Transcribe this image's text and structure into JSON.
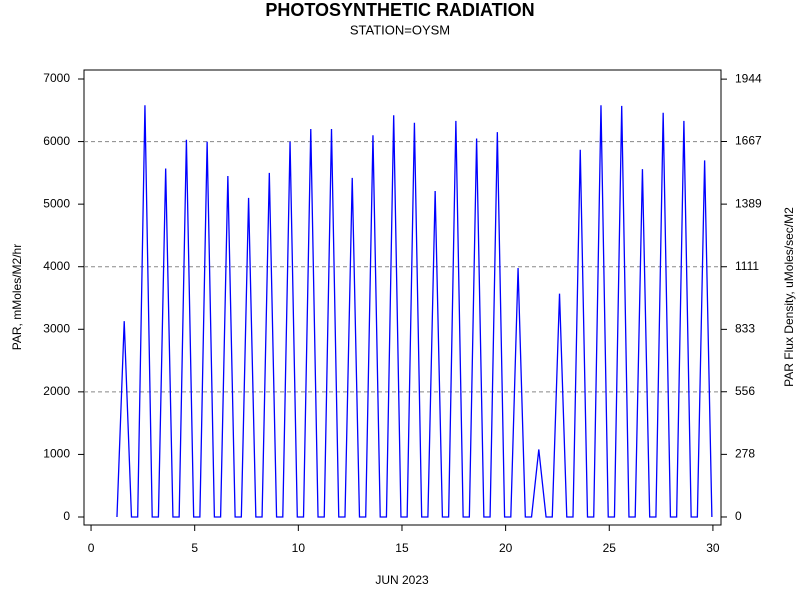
{
  "chart_data": {
    "type": "line",
    "title": "PHOTOSYNTHETIC RADIATION",
    "subtitle": "STATION=OYSM",
    "x_label": "JUN 2023",
    "y_label": "PAR, mMoles/M2/hr",
    "y2_label": "PAR Flux Density, uMoles/sec/M2",
    "x": [
      1.25,
      1.6,
      1.95,
      2.25,
      2.6,
      2.95,
      3.25,
      3.6,
      3.95,
      4.25,
      4.6,
      4.95,
      5.25,
      5.6,
      5.95,
      6.25,
      6.6,
      6.95,
      7.25,
      7.6,
      7.95,
      8.25,
      8.6,
      8.95,
      9.25,
      9.6,
      9.95,
      10.25,
      10.6,
      10.95,
      11.25,
      11.6,
      11.95,
      12.25,
      12.6,
      12.95,
      13.25,
      13.6,
      13.95,
      14.25,
      14.6,
      14.95,
      15.25,
      15.6,
      15.95,
      16.25,
      16.6,
      16.95,
      17.25,
      17.6,
      17.95,
      18.25,
      18.6,
      18.95,
      19.25,
      19.6,
      19.95,
      20.25,
      20.6,
      20.95,
      21.25,
      21.6,
      21.95,
      22.25,
      22.6,
      22.95,
      23.25,
      23.6,
      23.95,
      24.25,
      24.6,
      24.95,
      25.25,
      25.6,
      25.95,
      26.25,
      26.6,
      26.95,
      27.25,
      27.6,
      27.95,
      28.25,
      28.6,
      28.95,
      29.25,
      29.6,
      29.95
    ],
    "series": [
      {
        "color": "#0000ff",
        "values": [
          0,
          3130,
          0,
          0,
          6580,
          0,
          0,
          5570,
          0,
          0,
          6030,
          0,
          0,
          6000,
          0,
          0,
          5450,
          0,
          0,
          5100,
          0,
          0,
          5500,
          0,
          0,
          6000,
          0,
          0,
          6200,
          0,
          0,
          6200,
          0,
          0,
          5420,
          0,
          0,
          6100,
          0,
          0,
          6420,
          0,
          0,
          6300,
          0,
          0,
          5210,
          0,
          0,
          6330,
          0,
          0,
          6050,
          0,
          0,
          6150,
          0,
          0,
          3980,
          0,
          0,
          1080,
          0,
          0,
          3570,
          0,
          0,
          5870,
          0,
          0,
          6580,
          0,
          0,
          6570,
          0,
          0,
          5560,
          0,
          0,
          6460,
          0,
          0,
          6330,
          0,
          0,
          5700,
          0
        ]
      }
    ],
    "xlim": [
      -0.34,
      30.39
    ],
    "xticks": [
      0,
      5,
      10,
      15,
      20,
      25,
      30
    ],
    "ylim": [
      -128,
      7144
    ],
    "yticks": [
      0,
      1000,
      2000,
      3000,
      4000,
      5000,
      6000,
      7000
    ],
    "y2lim": [
      -35.6,
      1984.5
    ],
    "y2ticks": [
      0,
      278,
      556,
      833,
      1111,
      1389,
      1667,
      1944
    ],
    "grid_values": [
      2000,
      4000,
      6000
    ]
  }
}
